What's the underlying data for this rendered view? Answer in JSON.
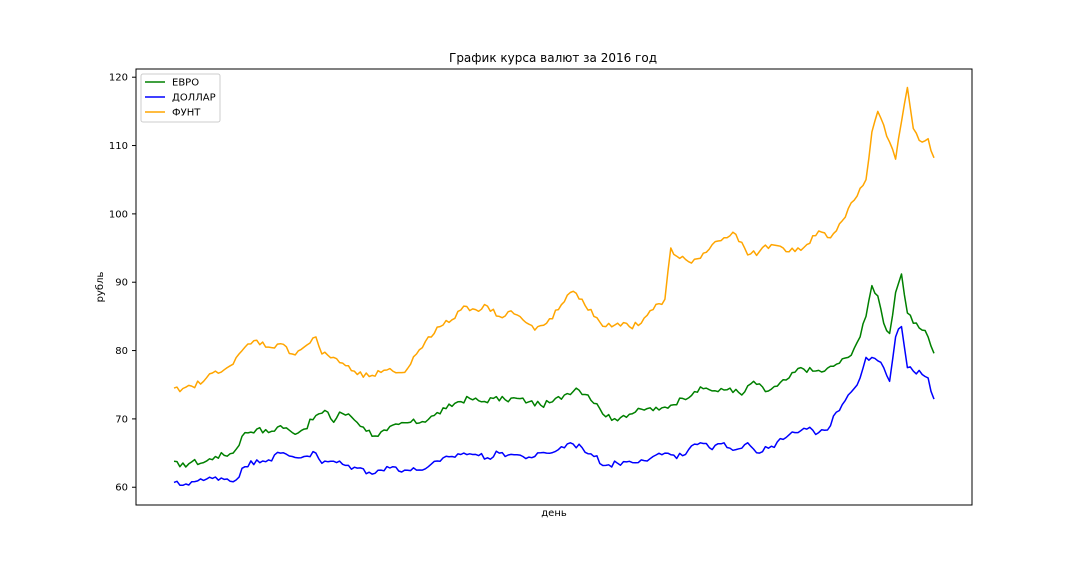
{
  "chart_data": {
    "type": "line",
    "title": "График курса валют за 2016 год",
    "xlabel": "день",
    "ylabel": "рубль",
    "ylim": [
      57.4,
      121.2
    ],
    "yticks": [
      60,
      70,
      80,
      90,
      100,
      110,
      120
    ],
    "x_tick_labels_shown": false,
    "grid": false,
    "legend_position": "top-left",
    "x_points": 250,
    "series": [
      {
        "name": "ЕВРО",
        "color": "#008000",
        "anchors": [
          [
            0,
            63.8
          ],
          [
            2,
            63.0
          ],
          [
            6,
            63.7
          ],
          [
            10,
            63.6
          ],
          [
            14,
            64.5
          ],
          [
            20,
            65.0
          ],
          [
            24,
            68.0
          ],
          [
            28,
            68.5
          ],
          [
            32,
            68.0
          ],
          [
            36,
            69.0
          ],
          [
            40,
            68.0
          ],
          [
            44,
            68.5
          ],
          [
            48,
            70.5
          ],
          [
            52,
            71.0
          ],
          [
            54,
            69.5
          ],
          [
            56,
            71.0
          ],
          [
            60,
            70.3
          ],
          [
            64,
            68.8
          ],
          [
            68,
            67.5
          ],
          [
            72,
            68.3
          ],
          [
            76,
            69.2
          ],
          [
            80,
            69.5
          ],
          [
            84,
            69.6
          ],
          [
            88,
            70.5
          ],
          [
            92,
            71.5
          ],
          [
            96,
            72.5
          ],
          [
            100,
            73.0
          ],
          [
            104,
            72.5
          ],
          [
            108,
            73.0
          ],
          [
            112,
            72.8
          ],
          [
            116,
            73.0
          ],
          [
            120,
            72.5
          ],
          [
            124,
            72.0
          ],
          [
            128,
            72.5
          ],
          [
            132,
            73.5
          ],
          [
            136,
            74.5
          ],
          [
            140,
            73.5
          ],
          [
            144,
            71.5
          ],
          [
            148,
            69.8
          ],
          [
            152,
            70.5
          ],
          [
            156,
            71.0
          ],
          [
            160,
            71.5
          ],
          [
            164,
            71.3
          ],
          [
            168,
            72.0
          ],
          [
            172,
            73.0
          ],
          [
            176,
            74.0
          ],
          [
            180,
            74.5
          ],
          [
            184,
            74.0
          ],
          [
            188,
            74.5
          ],
          [
            192,
            73.5
          ],
          [
            196,
            75.5
          ],
          [
            200,
            74.0
          ],
          [
            204,
            74.8
          ],
          [
            208,
            76.0
          ],
          [
            212,
            77.5
          ],
          [
            216,
            77.0
          ],
          [
            220,
            77.0
          ],
          [
            224,
            78.0
          ],
          [
            228,
            79.0
          ],
          [
            232,
            82.0
          ],
          [
            234,
            85.0
          ],
          [
            236,
            89.5
          ],
          [
            238,
            88.0
          ],
          [
            240,
            84.0
          ],
          [
            242,
            82.5
          ],
          [
            244,
            88.5
          ],
          [
            246,
            91.2
          ],
          [
            248,
            85.5
          ],
          [
            250,
            84.0
          ],
          [
            253,
            83.0
          ],
          [
            255,
            82.0
          ],
          [
            257,
            79.6
          ]
        ]
      },
      {
        "name": "ДОЛЛАР",
        "color": "#0000ff",
        "anchors": [
          [
            0,
            60.7
          ],
          [
            2,
            60.3
          ],
          [
            6,
            60.8
          ],
          [
            10,
            61.0
          ],
          [
            14,
            61.5
          ],
          [
            18,
            61.2
          ],
          [
            20,
            60.8
          ],
          [
            24,
            63.0
          ],
          [
            28,
            64.0
          ],
          [
            32,
            64.0
          ],
          [
            36,
            65.0
          ],
          [
            40,
            64.5
          ],
          [
            44,
            64.5
          ],
          [
            48,
            65.0
          ],
          [
            50,
            63.5
          ],
          [
            54,
            63.8
          ],
          [
            58,
            63.2
          ],
          [
            62,
            62.8
          ],
          [
            66,
            62.2
          ],
          [
            70,
            62.5
          ],
          [
            74,
            63.0
          ],
          [
            78,
            62.5
          ],
          [
            82,
            62.5
          ],
          [
            86,
            63.0
          ],
          [
            90,
            63.8
          ],
          [
            94,
            64.5
          ],
          [
            98,
            65.0
          ],
          [
            102,
            64.8
          ],
          [
            106,
            64.3
          ],
          [
            110,
            65.0
          ],
          [
            114,
            64.8
          ],
          [
            118,
            64.5
          ],
          [
            122,
            64.5
          ],
          [
            126,
            65.0
          ],
          [
            130,
            65.5
          ],
          [
            134,
            66.5
          ],
          [
            138,
            65.8
          ],
          [
            142,
            64.5
          ],
          [
            146,
            63.2
          ],
          [
            150,
            63.5
          ],
          [
            154,
            63.8
          ],
          [
            158,
            64.0
          ],
          [
            162,
            64.5
          ],
          [
            166,
            65.0
          ],
          [
            170,
            64.2
          ],
          [
            174,
            65.5
          ],
          [
            178,
            66.5
          ],
          [
            182,
            65.5
          ],
          [
            186,
            66.5
          ],
          [
            190,
            65.5
          ],
          [
            194,
            66.5
          ],
          [
            198,
            65.0
          ],
          [
            202,
            66.0
          ],
          [
            206,
            67.0
          ],
          [
            210,
            68.0
          ],
          [
            214,
            68.5
          ],
          [
            218,
            68.0
          ],
          [
            222,
            69.0
          ],
          [
            224,
            71.0
          ],
          [
            228,
            73.5
          ],
          [
            232,
            76.0
          ],
          [
            234,
            79.0
          ],
          [
            236,
            79.0
          ],
          [
            238,
            78.5
          ],
          [
            240,
            77.5
          ],
          [
            242,
            75.5
          ],
          [
            244,
            82.0
          ],
          [
            246,
            83.5
          ],
          [
            248,
            77.5
          ],
          [
            250,
            77.0
          ],
          [
            253,
            76.5
          ],
          [
            255,
            76.0
          ],
          [
            257,
            72.9
          ]
        ]
      },
      {
        "name": "ФУНТ",
        "color": "#ffa500",
        "anchors": [
          [
            0,
            74.5
          ],
          [
            2,
            74.0
          ],
          [
            6,
            74.8
          ],
          [
            10,
            75.5
          ],
          [
            14,
            77.0
          ],
          [
            18,
            77.5
          ],
          [
            20,
            78.0
          ],
          [
            24,
            80.5
          ],
          [
            28,
            81.5
          ],
          [
            32,
            80.5
          ],
          [
            36,
            81.0
          ],
          [
            40,
            79.5
          ],
          [
            44,
            80.5
          ],
          [
            48,
            82.0
          ],
          [
            50,
            79.5
          ],
          [
            54,
            79.0
          ],
          [
            58,
            77.8
          ],
          [
            62,
            76.5
          ],
          [
            66,
            76.2
          ],
          [
            70,
            76.8
          ],
          [
            74,
            77.0
          ],
          [
            78,
            76.8
          ],
          [
            82,
            79.5
          ],
          [
            86,
            82.0
          ],
          [
            90,
            83.5
          ],
          [
            94,
            84.5
          ],
          [
            98,
            86.5
          ],
          [
            102,
            86.0
          ],
          [
            106,
            86.5
          ],
          [
            110,
            85.0
          ],
          [
            114,
            85.8
          ],
          [
            118,
            84.5
          ],
          [
            122,
            83.0
          ],
          [
            126,
            84.0
          ],
          [
            130,
            86.0
          ],
          [
            134,
            88.5
          ],
          [
            138,
            87.5
          ],
          [
            142,
            85.0
          ],
          [
            146,
            83.5
          ],
          [
            150,
            84.0
          ],
          [
            154,
            83.5
          ],
          [
            158,
            84.0
          ],
          [
            162,
            86.0
          ],
          [
            166,
            87.5
          ],
          [
            168,
            95.0
          ],
          [
            170,
            93.8
          ],
          [
            174,
            93.0
          ],
          [
            178,
            93.5
          ],
          [
            182,
            95.5
          ],
          [
            186,
            96.5
          ],
          [
            190,
            97.0
          ],
          [
            194,
            94.0
          ],
          [
            198,
            94.5
          ],
          [
            202,
            95.5
          ],
          [
            206,
            95.0
          ],
          [
            210,
            94.5
          ],
          [
            214,
            95.5
          ],
          [
            218,
            97.5
          ],
          [
            222,
            96.5
          ],
          [
            226,
            99.0
          ],
          [
            230,
            102.0
          ],
          [
            234,
            105.0
          ],
          [
            236,
            112.0
          ],
          [
            238,
            115.0
          ],
          [
            240,
            113.0
          ],
          [
            242,
            110.5
          ],
          [
            244,
            108.0
          ],
          [
            246,
            113.5
          ],
          [
            248,
            118.5
          ],
          [
            250,
            112.5
          ],
          [
            253,
            110.5
          ],
          [
            255,
            111.0
          ],
          [
            257,
            108.2
          ]
        ]
      }
    ]
  }
}
